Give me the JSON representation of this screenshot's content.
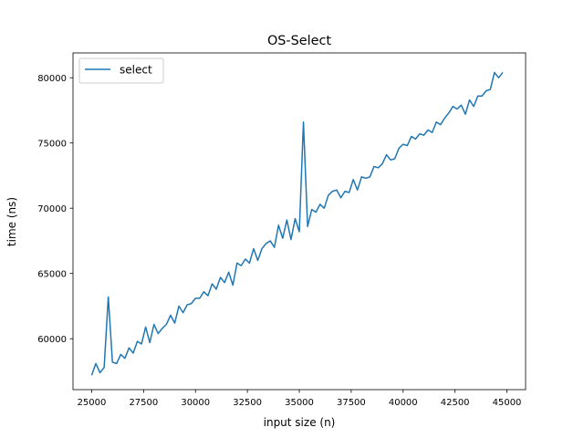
{
  "chart_data": {
    "type": "line",
    "title": "OS-Select",
    "xlabel": "input size (n)",
    "ylabel": "time (ns)",
    "xlim": [
      24100,
      45900
    ],
    "ylim": [
      56100,
      81900
    ],
    "xticks": [
      25000,
      27500,
      30000,
      32500,
      35000,
      37500,
      40000,
      42500,
      45000
    ],
    "xtick_labels": [
      "25000",
      "27500",
      "30000",
      "32500",
      "35000",
      "37500",
      "40000",
      "42500",
      "45000"
    ],
    "yticks": [
      60000,
      65000,
      70000,
      75000,
      80000
    ],
    "ytick_labels": [
      "60000",
      "65000",
      "70000",
      "75000",
      "80000"
    ],
    "grid": false,
    "legend_position": "upper left",
    "series": [
      {
        "name": "select",
        "color": "#1f77b4",
        "x": [
          25000,
          25200,
          25400,
          25600,
          25800,
          26000,
          26200,
          26400,
          26600,
          26800,
          27000,
          27200,
          27400,
          27600,
          27800,
          28000,
          28200,
          28400,
          28600,
          28800,
          29000,
          29200,
          29400,
          29600,
          29800,
          30000,
          30200,
          30400,
          30600,
          30800,
          31000,
          31200,
          31400,
          31600,
          31800,
          32000,
          32200,
          32400,
          32600,
          32800,
          33000,
          33200,
          33400,
          33600,
          33800,
          34000,
          34200,
          34400,
          34600,
          34800,
          35000,
          35200,
          35400,
          35600,
          35800,
          36000,
          36200,
          36400,
          36600,
          36800,
          37000,
          37200,
          37400,
          37600,
          37800,
          38000,
          38200,
          38400,
          38600,
          38800,
          39000,
          39200,
          39400,
          39600,
          39800,
          40000,
          40200,
          40400,
          40600,
          40800,
          41000,
          41200,
          41400,
          41600,
          41800,
          42000,
          42200,
          42400,
          42600,
          42800,
          43000,
          43200,
          43400,
          43600,
          43800,
          44000,
          44200,
          44400,
          44600,
          44800
        ],
        "y": [
          57200,
          58100,
          57400,
          57800,
          63200,
          58200,
          58100,
          58800,
          58500,
          59300,
          58900,
          59800,
          59600,
          60900,
          59700,
          61100,
          60400,
          60800,
          61100,
          61800,
          61200,
          62500,
          62000,
          62600,
          62700,
          63100,
          63100,
          63600,
          63300,
          64200,
          63800,
          64700,
          64300,
          65100,
          64100,
          65800,
          65600,
          66100,
          65800,
          66900,
          66000,
          66900,
          67300,
          67500,
          67000,
          68700,
          67700,
          69100,
          67600,
          69200,
          68200,
          76600,
          68600,
          69900,
          69700,
          70300,
          70000,
          71000,
          71300,
          71400,
          70800,
          71300,
          71200,
          72200,
          71400,
          72400,
          72300,
          72400,
          73200,
          73100,
          73400,
          74100,
          73700,
          73800,
          74600,
          74900,
          74800,
          75500,
          75300,
          75700,
          75600,
          76000,
          75800,
          76600,
          76400,
          76900,
          77300,
          77800,
          77600,
          77900,
          77200,
          78300,
          77800,
          78600,
          78600,
          79000,
          79100,
          80400,
          80000,
          80400
        ]
      }
    ]
  }
}
